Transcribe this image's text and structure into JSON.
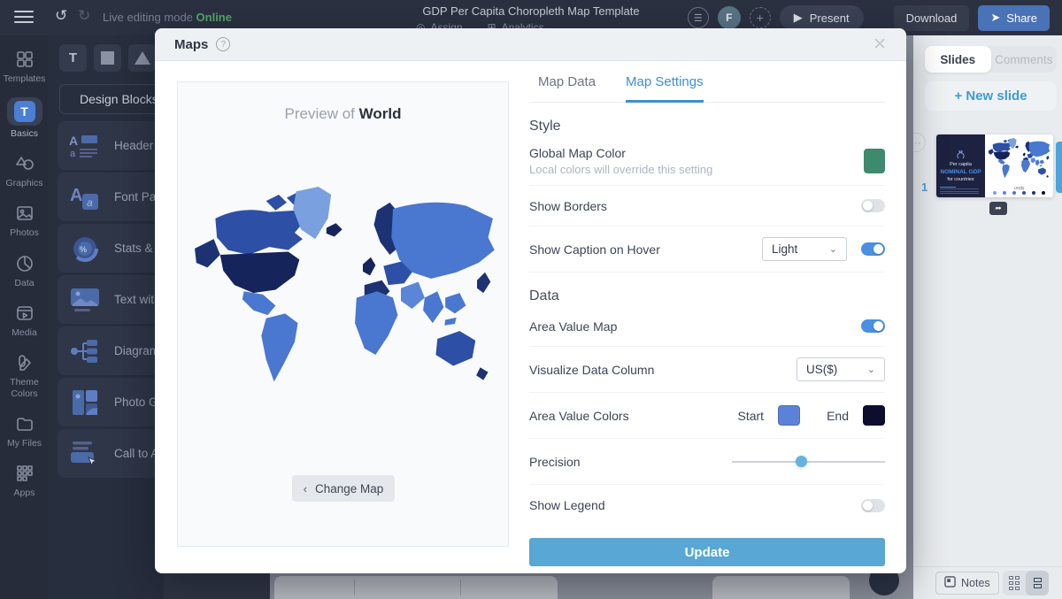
{
  "topbar": {
    "live_editing_label": "Live editing mode",
    "online_label": "Online",
    "title": "GDP Per Capita Choropleth Map Template",
    "assign_label": "Assign",
    "analytics_label": "Analytics",
    "avatar_initial": "F",
    "present_label": "Present",
    "download_label": "Download",
    "share_label": "Share"
  },
  "sidebar": {
    "items": [
      {
        "label": "Templates"
      },
      {
        "label": "Basics"
      },
      {
        "label": "Graphics"
      },
      {
        "label": "Photos"
      },
      {
        "label": "Data"
      },
      {
        "label": "Media"
      },
      {
        "label": "Theme Colors"
      },
      {
        "label": "My Files"
      },
      {
        "label": "Apps"
      }
    ],
    "basics_icon_letter": "T"
  },
  "left_panel": {
    "text_tool_label": "T",
    "design_blocks_label": "Design Blocks",
    "items": [
      {
        "label": "Header & T"
      },
      {
        "label": "Font Pairs"
      },
      {
        "label": "Stats & Fig"
      },
      {
        "label": "Text with C"
      },
      {
        "label": "Diagrams"
      },
      {
        "label": "Photo Grid"
      },
      {
        "label": "Call to Act"
      }
    ]
  },
  "modal": {
    "title": "Maps",
    "tabs": [
      {
        "label": "Map Data"
      },
      {
        "label": "Map Settings"
      }
    ],
    "preview": {
      "title_prefix": "Preview of",
      "title_map": "World",
      "change_map_label": "Change Map",
      "map_palette": {
        "light": "#7aa0e0",
        "mid": "#4a77d0",
        "mid2": "#5b86d8",
        "dark": "#2d4fa5",
        "darker": "#1d3273",
        "darkest": "#16245c"
      }
    },
    "settings": {
      "style_heading": "Style",
      "global_map_color": {
        "label": "Global Map Color",
        "sublabel": "Local colors will override this setting",
        "color": "#3d8a6e"
      },
      "show_borders": {
        "label": "Show Borders",
        "enabled": false
      },
      "show_caption": {
        "label": "Show Caption on Hover",
        "value": "Light",
        "enabled": true
      },
      "data_heading": "Data",
      "area_value_map": {
        "label": "Area Value Map",
        "enabled": true
      },
      "visualize_column": {
        "label": "Visualize Data Column",
        "value": "US($)"
      },
      "area_value_colors": {
        "label": "Area Value Colors",
        "start_label": "Start",
        "start_color": "#5b82d8",
        "end_label": "End",
        "end_color": "#0c0e30"
      },
      "precision": {
        "label": "Precision",
        "percent": 45
      },
      "show_legend": {
        "label": "Show Legend",
        "enabled": false
      },
      "update_label": "Update"
    }
  },
  "slides_panel": {
    "tabs": [
      {
        "label": "Slides"
      },
      {
        "label": "Comments"
      }
    ],
    "new_slide_label": "+ New slide",
    "slide_number": "1",
    "thumbnail": {
      "line1": "Per capita",
      "line2": "NOMINAL GDP",
      "line3": "for countries",
      "legend_label": "US($)"
    },
    "notes_label": "Notes"
  }
}
